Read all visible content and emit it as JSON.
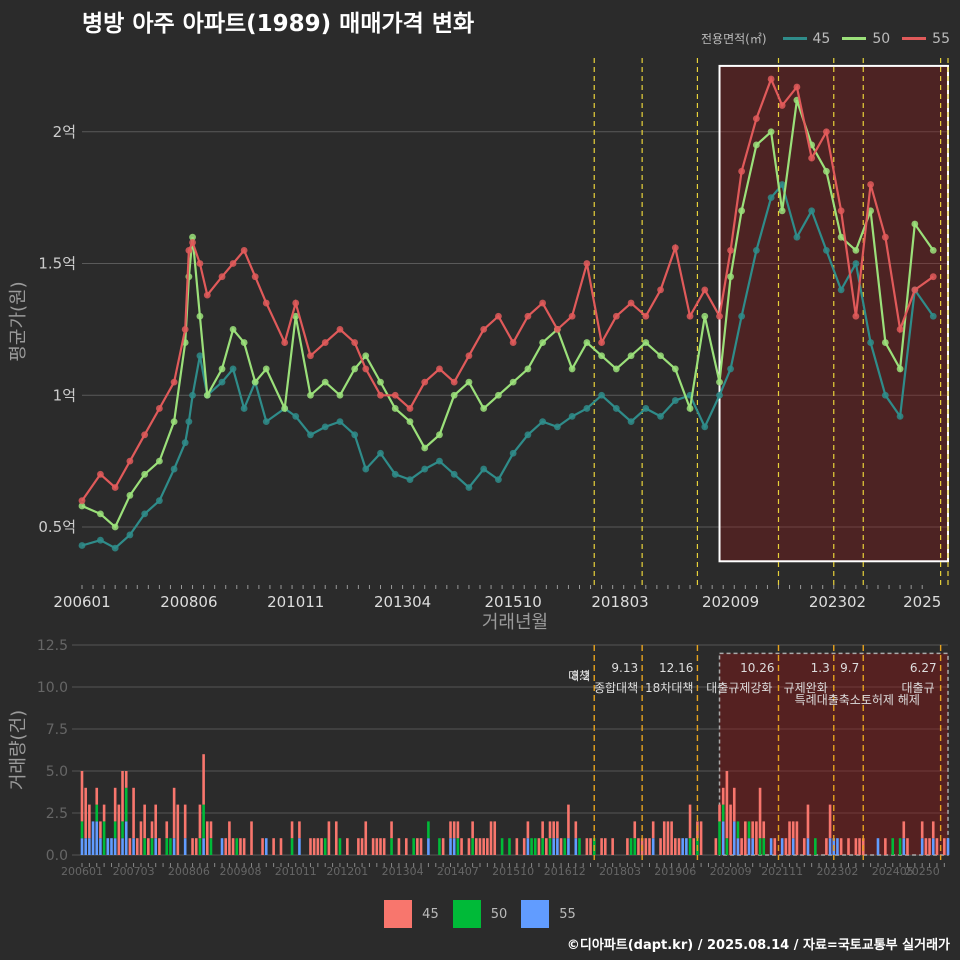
{
  "title": "병방 아주 아파트(1989) 매매가격 변화",
  "credit": "©디아파트(dapt.kr) / 2025.08.14 / 자료=국토교통부 실거래가",
  "legend": {
    "title": "전용면적(㎡)"
  },
  "colors": {
    "s45": "#2f8c8a",
    "s50": "#9be07a",
    "s55": "#e05a5a",
    "bar45": "#f8766d",
    "bar50": "#00ba38",
    "bar55": "#619cff",
    "vline": "#e8d23a",
    "vline2": "#e6a21e"
  },
  "chart_data": [
    {
      "type": "line",
      "title": "병방 아주 아파트(1989) 매매가격 변화",
      "xlabel": "거래년월",
      "ylabel": "평균가(원)",
      "x_ticks": [
        "200601",
        "200806",
        "201011",
        "201304",
        "201510",
        "201803",
        "202009",
        "202302",
        "2025"
      ],
      "y_ticks": [
        {
          "value": 0.5,
          "label": "0.5억"
        },
        {
          "value": 1.0,
          "label": "1억"
        },
        {
          "value": 1.5,
          "label": "1.5억"
        },
        {
          "value": 2.0,
          "label": "2억"
        }
      ],
      "ylim": [
        0.28,
        2.28
      ],
      "xlim": [
        "2006-01",
        "2025-08"
      ],
      "grid": true,
      "legend_position": "top-right",
      "series": [
        {
          "name": "45",
          "points": [
            [
              "2006-01",
              0.43
            ],
            [
              "2006-06",
              0.45
            ],
            [
              "2006-10",
              0.42
            ],
            [
              "2007-02",
              0.47
            ],
            [
              "2007-06",
              0.55
            ],
            [
              "2007-10",
              0.6
            ],
            [
              "2008-02",
              0.72
            ],
            [
              "2008-05",
              0.82
            ],
            [
              "2008-06",
              0.9
            ],
            [
              "2008-07",
              1.0
            ],
            [
              "2008-09",
              1.15
            ],
            [
              "2008-11",
              1.0
            ],
            [
              "2009-03",
              1.05
            ],
            [
              "2009-06",
              1.1
            ],
            [
              "2009-09",
              0.95
            ],
            [
              "2009-12",
              1.05
            ],
            [
              "2010-03",
              0.9
            ],
            [
              "2010-08",
              0.95
            ],
            [
              "2010-11",
              0.92
            ],
            [
              "2011-03",
              0.85
            ],
            [
              "2011-07",
              0.88
            ],
            [
              "2011-11",
              0.9
            ],
            [
              "2012-03",
              0.85
            ],
            [
              "2012-06",
              0.72
            ],
            [
              "2012-10",
              0.78
            ],
            [
              "2013-02",
              0.7
            ],
            [
              "2013-06",
              0.68
            ],
            [
              "2013-10",
              0.72
            ],
            [
              "2014-02",
              0.75
            ],
            [
              "2014-06",
              0.7
            ],
            [
              "2014-10",
              0.65
            ],
            [
              "2015-02",
              0.72
            ],
            [
              "2015-06",
              0.68
            ],
            [
              "2015-10",
              0.78
            ],
            [
              "2016-02",
              0.85
            ],
            [
              "2016-06",
              0.9
            ],
            [
              "2016-10",
              0.88
            ],
            [
              "2017-02",
              0.92
            ],
            [
              "2017-06",
              0.95
            ],
            [
              "2017-10",
              1.0
            ],
            [
              "2018-02",
              0.95
            ],
            [
              "2018-06",
              0.9
            ],
            [
              "2018-10",
              0.95
            ],
            [
              "2019-02",
              0.92
            ],
            [
              "2019-06",
              0.98
            ],
            [
              "2019-10",
              1.0
            ],
            [
              "2020-02",
              0.88
            ],
            [
              "2020-06",
              1.0
            ],
            [
              "2020-09",
              1.1
            ],
            [
              "2020-12",
              1.3
            ],
            [
              "2021-04",
              1.55
            ],
            [
              "2021-08",
              1.75
            ],
            [
              "2021-11",
              1.8
            ],
            [
              "2022-03",
              1.6
            ],
            [
              "2022-07",
              1.7
            ],
            [
              "2022-11",
              1.55
            ],
            [
              "2023-03",
              1.4
            ],
            [
              "2023-07",
              1.5
            ],
            [
              "2023-11",
              1.2
            ],
            [
              "2024-03",
              1.0
            ],
            [
              "2024-07",
              0.92
            ],
            [
              "2024-11",
              1.4
            ],
            [
              "2025-04",
              1.3
            ]
          ]
        },
        {
          "name": "50",
          "points": [
            [
              "2006-01",
              0.58
            ],
            [
              "2006-06",
              0.55
            ],
            [
              "2006-10",
              0.5
            ],
            [
              "2007-02",
              0.62
            ],
            [
              "2007-06",
              0.7
            ],
            [
              "2007-10",
              0.75
            ],
            [
              "2008-02",
              0.9
            ],
            [
              "2008-05",
              1.2
            ],
            [
              "2008-06",
              1.45
            ],
            [
              "2008-07",
              1.6
            ],
            [
              "2008-09",
              1.3
            ],
            [
              "2008-11",
              1.0
            ],
            [
              "2009-03",
              1.1
            ],
            [
              "2009-06",
              1.25
            ],
            [
              "2009-09",
              1.2
            ],
            [
              "2009-12",
              1.05
            ],
            [
              "2010-03",
              1.1
            ],
            [
              "2010-08",
              0.95
            ],
            [
              "2010-11",
              1.3
            ],
            [
              "2011-03",
              1.0
            ],
            [
              "2011-07",
              1.05
            ],
            [
              "2011-11",
              1.0
            ],
            [
              "2012-03",
              1.1
            ],
            [
              "2012-06",
              1.15
            ],
            [
              "2012-10",
              1.05
            ],
            [
              "2013-02",
              0.95
            ],
            [
              "2013-06",
              0.9
            ],
            [
              "2013-10",
              0.8
            ],
            [
              "2014-02",
              0.85
            ],
            [
              "2014-06",
              1.0
            ],
            [
              "2014-10",
              1.05
            ],
            [
              "2015-02",
              0.95
            ],
            [
              "2015-06",
              1.0
            ],
            [
              "2015-10",
              1.05
            ],
            [
              "2016-02",
              1.1
            ],
            [
              "2016-06",
              1.2
            ],
            [
              "2016-10",
              1.25
            ],
            [
              "2017-02",
              1.1
            ],
            [
              "2017-06",
              1.2
            ],
            [
              "2017-10",
              1.15
            ],
            [
              "2018-02",
              1.1
            ],
            [
              "2018-06",
              1.15
            ],
            [
              "2018-10",
              1.2
            ],
            [
              "2019-02",
              1.15
            ],
            [
              "2019-06",
              1.1
            ],
            [
              "2019-10",
              0.95
            ],
            [
              "2020-02",
              1.3
            ],
            [
              "2020-06",
              1.05
            ],
            [
              "2020-09",
              1.45
            ],
            [
              "2020-12",
              1.7
            ],
            [
              "2021-04",
              1.95
            ],
            [
              "2021-08",
              2.0
            ],
            [
              "2021-11",
              1.7
            ],
            [
              "2022-03",
              2.12
            ],
            [
              "2022-07",
              1.95
            ],
            [
              "2022-11",
              1.85
            ],
            [
              "2023-03",
              1.6
            ],
            [
              "2023-07",
              1.55
            ],
            [
              "2023-11",
              1.7
            ],
            [
              "2024-03",
              1.2
            ],
            [
              "2024-07",
              1.1
            ],
            [
              "2024-11",
              1.65
            ],
            [
              "2025-04",
              1.55
            ]
          ]
        },
        {
          "name": "55",
          "points": [
            [
              "2006-01",
              0.6
            ],
            [
              "2006-06",
              0.7
            ],
            [
              "2006-10",
              0.65
            ],
            [
              "2007-02",
              0.75
            ],
            [
              "2007-06",
              0.85
            ],
            [
              "2007-10",
              0.95
            ],
            [
              "2008-02",
              1.05
            ],
            [
              "2008-05",
              1.25
            ],
            [
              "2008-06",
              1.55
            ],
            [
              "2008-07",
              1.58
            ],
            [
              "2008-09",
              1.5
            ],
            [
              "2008-11",
              1.38
            ],
            [
              "2009-03",
              1.45
            ],
            [
              "2009-06",
              1.5
            ],
            [
              "2009-09",
              1.55
            ],
            [
              "2009-12",
              1.45
            ],
            [
              "2010-03",
              1.35
            ],
            [
              "2010-08",
              1.2
            ],
            [
              "2010-11",
              1.35
            ],
            [
              "2011-03",
              1.15
            ],
            [
              "2011-07",
              1.2
            ],
            [
              "2011-11",
              1.25
            ],
            [
              "2012-03",
              1.2
            ],
            [
              "2012-06",
              1.1
            ],
            [
              "2012-10",
              1.0
            ],
            [
              "2013-02",
              1.0
            ],
            [
              "2013-06",
              0.95
            ],
            [
              "2013-10",
              1.05
            ],
            [
              "2014-02",
              1.1
            ],
            [
              "2014-06",
              1.05
            ],
            [
              "2014-10",
              1.15
            ],
            [
              "2015-02",
              1.25
            ],
            [
              "2015-06",
              1.3
            ],
            [
              "2015-10",
              1.2
            ],
            [
              "2016-02",
              1.3
            ],
            [
              "2016-06",
              1.35
            ],
            [
              "2016-10",
              1.25
            ],
            [
              "2017-02",
              1.3
            ],
            [
              "2017-06",
              1.5
            ],
            [
              "2017-10",
              1.2
            ],
            [
              "2018-02",
              1.3
            ],
            [
              "2018-06",
              1.35
            ],
            [
              "2018-10",
              1.3
            ],
            [
              "2019-02",
              1.4
            ],
            [
              "2019-06",
              1.56
            ],
            [
              "2019-10",
              1.3
            ],
            [
              "2020-02",
              1.4
            ],
            [
              "2020-06",
              1.3
            ],
            [
              "2020-09",
              1.55
            ],
            [
              "2020-12",
              1.85
            ],
            [
              "2021-04",
              2.05
            ],
            [
              "2021-08",
              2.2
            ],
            [
              "2021-11",
              2.1
            ],
            [
              "2022-03",
              2.17
            ],
            [
              "2022-07",
              1.9
            ],
            [
              "2022-11",
              2.0
            ],
            [
              "2023-03",
              1.7
            ],
            [
              "2023-07",
              1.3
            ],
            [
              "2023-11",
              1.8
            ],
            [
              "2024-03",
              1.6
            ],
            [
              "2024-07",
              1.25
            ],
            [
              "2024-11",
              1.4
            ],
            [
              "2025-04",
              1.45
            ]
          ]
        }
      ],
      "event_lines": [
        "2017-08",
        "2018-09",
        "2019-12",
        "2021-10",
        "2023-01",
        "2023-09",
        "2025-06",
        "2025-08"
      ],
      "highlight_range": [
        "2020-06",
        "2025-08"
      ]
    },
    {
      "type": "bar",
      "xlabel": "",
      "ylabel": "거래량(건)",
      "x_ticks": [
        "200601",
        "200703",
        "200806",
        "200908",
        "201011",
        "201201",
        "201304",
        "201407",
        "201510",
        "201612",
        "201803",
        "201906",
        "202009",
        "202111",
        "202302",
        "202405",
        "20250"
      ],
      "y_ticks": [
        0.0,
        2.5,
        5.0,
        7.5,
        10.0,
        12.5
      ],
      "ylim": [
        0,
        12.5
      ],
      "stacked": true,
      "series_names": [
        "45",
        "50",
        "55"
      ],
      "event_labels": [
        {
          "date": "2017-08",
          "date_label": "8.2",
          "label": "대책"
        },
        {
          "date": "2018-09",
          "date_label": "9.13",
          "label": "종합대책"
        },
        {
          "date": "2019-12",
          "date_label": "12.16",
          "label": "18차대책"
        },
        {
          "date": "2021-10",
          "date_label": "10.26",
          "label": "대출규제강화"
        },
        {
          "date": "2023-01",
          "date_label": "1.3",
          "label": "규제완화"
        },
        {
          "date": "2023-09",
          "date_label": "9.7",
          "label": "특례대출축소토허제 해제"
        },
        {
          "date": "2025-06",
          "date_label": "6.27",
          "label": "대출규"
        }
      ],
      "highlight_range": [
        "2020-06",
        "2025-08"
      ]
    }
  ]
}
